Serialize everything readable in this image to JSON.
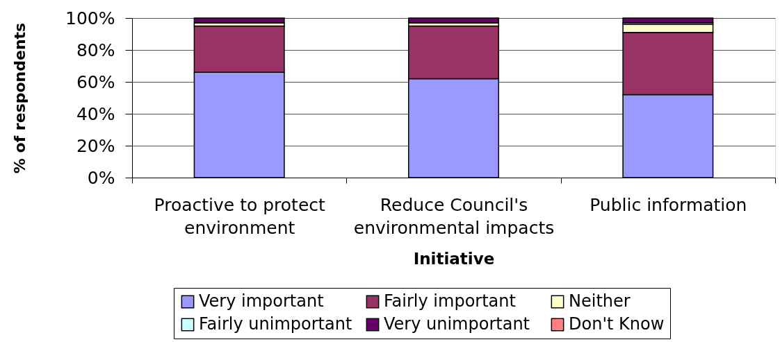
{
  "chart_data": {
    "type": "bar",
    "stacked": true,
    "categories": [
      "Proactive to protect environment",
      "Reduce Council's environmental impacts",
      "Public information"
    ],
    "xlabel": "Initiative",
    "ylabel": "% of respondents",
    "ylim": [
      0,
      100
    ],
    "yticks": [
      {
        "value": 0,
        "label": "0%"
      },
      {
        "value": 20,
        "label": "20%"
      },
      {
        "value": 40,
        "label": "40%"
      },
      {
        "value": 60,
        "label": "60%"
      },
      {
        "value": 80,
        "label": "80%"
      },
      {
        "value": 100,
        "label": "100%"
      }
    ],
    "grid": "y",
    "legend": "bottom",
    "series": [
      {
        "name": "Very important",
        "color": "#9999ff",
        "values": [
          66,
          62,
          52
        ]
      },
      {
        "name": "Fairly important",
        "color": "#993366",
        "values": [
          29,
          33,
          39
        ]
      },
      {
        "name": "Neither",
        "color": "#ffffcc",
        "values": [
          2,
          2,
          5
        ]
      },
      {
        "name": "Fairly unimportant",
        "color": "#ccffff",
        "values": [
          0,
          0,
          1
        ]
      },
      {
        "name": "Very unimportant",
        "color": "#660066",
        "values": [
          3,
          3,
          3
        ]
      },
      {
        "name": "Don't Know",
        "color": "#ff8080",
        "values": [
          0,
          0,
          0
        ]
      }
    ]
  }
}
